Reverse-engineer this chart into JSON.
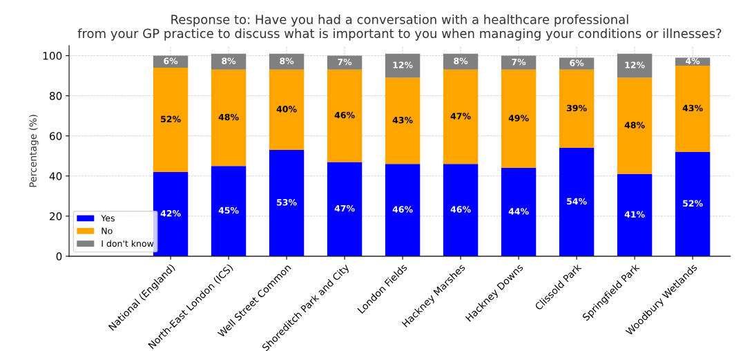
{
  "chart_data": {
    "type": "bar",
    "stacked": true,
    "title": "Response to: Have you had a conversation with a healthcare professional\nfrom your GP practice to discuss what is important to you when managing your conditions or illnesses?",
    "ylabel": "Percentage (%)",
    "categories": [
      "National (England)",
      "North-East London (ICS)",
      "Well Street Common",
      "Shoreditch Park and City",
      "London Fields",
      "Hackney Marshes",
      "Hackney Downs",
      "Clissold Park",
      "Springfield Park",
      "Woodbury Wetlands"
    ],
    "series": [
      {
        "name": "Yes",
        "color": "#0000ff",
        "values": [
          42,
          45,
          53,
          47,
          46,
          46,
          44,
          54,
          41,
          52
        ],
        "value_labels": [
          "42%",
          "45%",
          "53%",
          "47%",
          "46%",
          "46%",
          "44%",
          "54%",
          "41%",
          "52%"
        ]
      },
      {
        "name": "No",
        "color": "#ffa500",
        "values": [
          52,
          48,
          40,
          46,
          43,
          47,
          49,
          39,
          48,
          43
        ],
        "value_labels": [
          "52%",
          "48%",
          "40%",
          "46%",
          "43%",
          "47%",
          "49%",
          "39%",
          "48%",
          "43%"
        ]
      },
      {
        "name": "I don't know",
        "color": "#808080",
        "values": [
          6,
          8,
          8,
          7,
          12,
          8,
          7,
          6,
          12,
          4
        ],
        "value_labels": [
          "6%",
          "8%",
          "8%",
          "7%",
          "12%",
          "8%",
          "7%",
          "6%",
          "12%",
          "4%"
        ]
      }
    ],
    "ylim": [
      0,
      105
    ],
    "yticks": [
      0,
      20,
      40,
      60,
      80,
      100
    ],
    "grid": true,
    "legend": "bottom left"
  }
}
